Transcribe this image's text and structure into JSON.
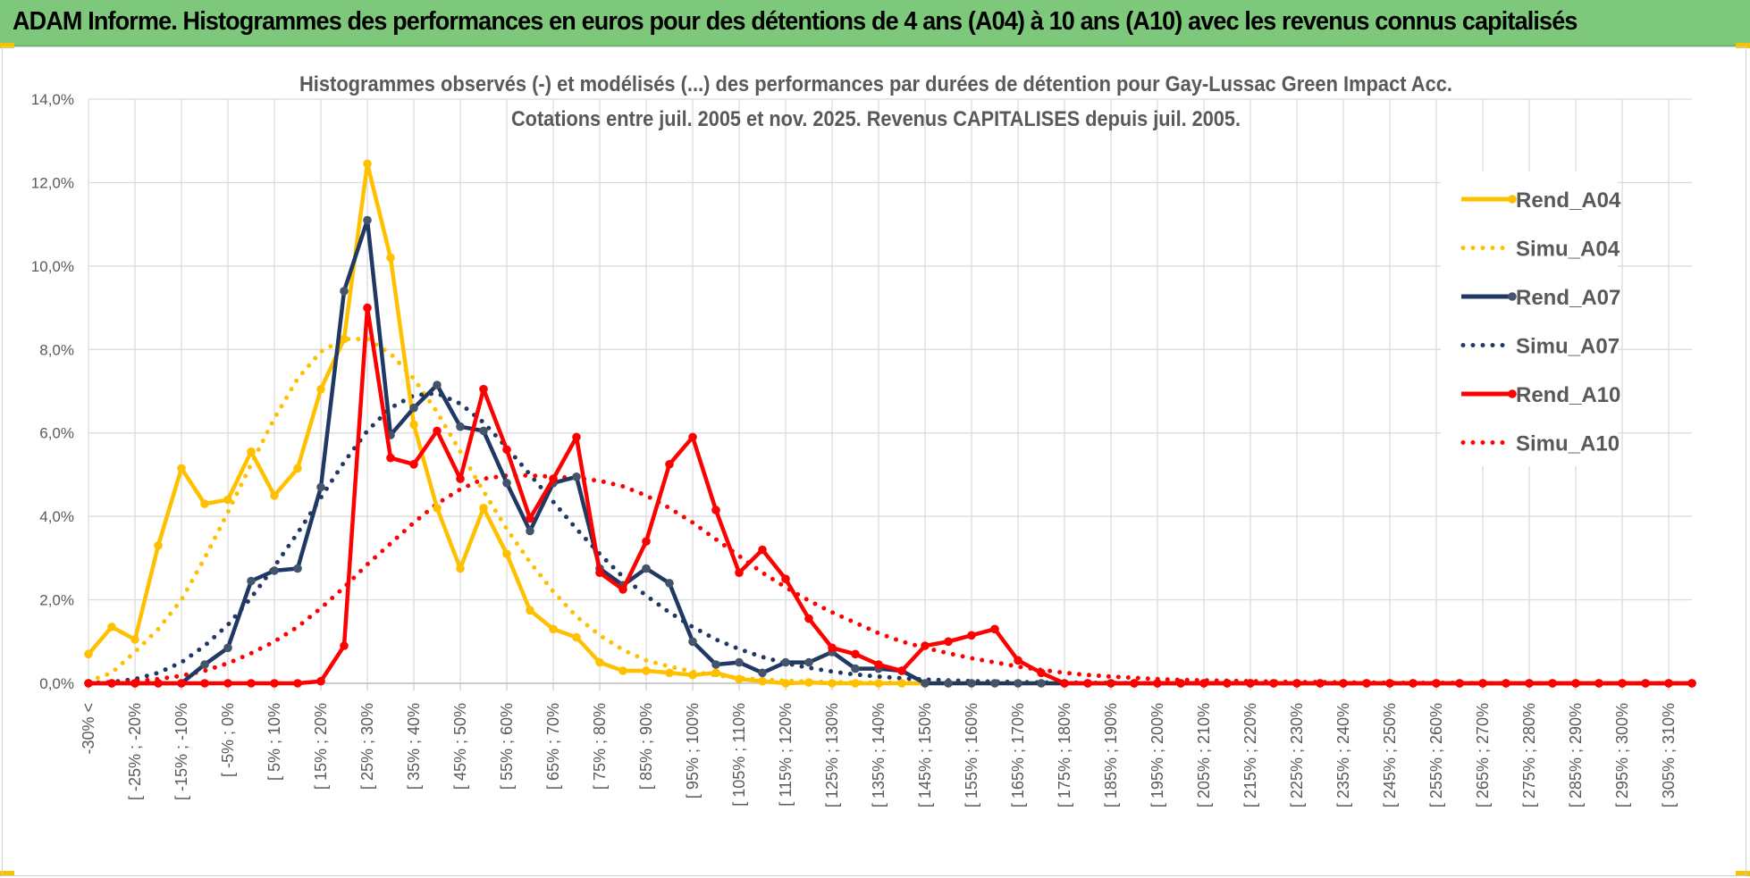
{
  "banner": {
    "title": "ADAM Informe. Histogrammes des performances en euros pour des détentions de 4 ans (A04) à 10 ans (A10) avec les revenus connus capitalisés"
  },
  "colors": {
    "banner_bg": "#7dc87a",
    "A04": "#ffc000",
    "A07": "#1f3864",
    "A10": "#ff0000",
    "grid": "#d9d9d9",
    "text": "#595959"
  },
  "chart_data": {
    "type": "line",
    "title_line1": "Histogrammes observés (-) et modélisés (...)  des performances par durées de détention pour Gay-Lussac Green Impact Acc.",
    "title_line2": "Cotations entre juil. 2005 et nov. 2025. Revenus CAPITALISES depuis juil. 2005.",
    "ylim": [
      0,
      14
    ],
    "yticks": [
      "0,0%",
      "2,0%",
      "4,0%",
      "6,0%",
      "8,0%",
      "10,0%",
      "12,0%",
      "14,0%"
    ],
    "x_label_all": [
      "-30% <",
      "[ -25% ; -20% ",
      "[ -15% ; -10% ",
      "[ -5% ; 0% ",
      "[ 5% ; 10% ",
      "[ 15% ; 20% ",
      "[ 25% ; 30% ",
      "[ 35% ; 40% ",
      "[ 45% ; 50% ",
      "[ 55% ; 60% ",
      "[ 65% ; 70% ",
      "[ 75% ; 80% ",
      "[ 85% ; 90% ",
      "[ 95% ; 100% ",
      "[ 105% ; 110% ",
      "[ 115% ; 120% ",
      "[ 125% ; 130% ",
      "[ 135% ; 140% ",
      "[ 145% ; 150% ",
      "[ 155% ; 160% ",
      "[ 165% ; 170% ",
      "[ 175% ; 180% ",
      "[ 185% ; 190% ",
      "[ 195% ; 200% ",
      "[ 205% ; 210% ",
      "[ 215% ; 220% ",
      "[ 225% ; 230% ",
      "[ 235% ; 240% ",
      "[ 245% ; 250% ",
      "[ 255% ; 260% ",
      "[ 265% ; 270% ",
      "[ 275% ; 280% ",
      "[ 285% ; 290% ",
      "[ 295% ; 300% ",
      "[ 305% ; 310% "
    ],
    "n_bins": 70,
    "series": [
      {
        "name": "Rend_A04",
        "style": "solid",
        "color": "#ffc000",
        "values": [
          0.7,
          1.35,
          1.05,
          3.3,
          5.15,
          4.3,
          4.4,
          5.55,
          4.5,
          5.15,
          7.05,
          8.25,
          12.45,
          10.2,
          6.2,
          4.2,
          2.75,
          4.2,
          3.1,
          1.75,
          1.3,
          1.1,
          0.5,
          0.3,
          0.3,
          0.25,
          0.2,
          0.25,
          0.1,
          0.05,
          0.0,
          0.02,
          0.0,
          0.0,
          0.0,
          0.0,
          0.0,
          0.0,
          0.0,
          0.0,
          0.0,
          0.0,
          0.0,
          0.0,
          0.0,
          0.0,
          0.0,
          0.0,
          0.0,
          0.0,
          0.0,
          0.0,
          0.0,
          0.0,
          0.0,
          0.0,
          0.0,
          0.0,
          0.0,
          0.0,
          0.0,
          0.0,
          0.0,
          0.0,
          0.0,
          0.0,
          0.0,
          0.0,
          0.0,
          0.0
        ]
      },
      {
        "name": "Simu_A04",
        "style": "dotted",
        "color": "#ffc000",
        "values": [
          0.05,
          0.25,
          0.75,
          1.3,
          2.0,
          3.0,
          4.1,
          5.25,
          6.35,
          7.3,
          7.95,
          8.25,
          8.25,
          7.9,
          7.3,
          6.5,
          5.55,
          4.6,
          3.7,
          2.9,
          2.2,
          1.6,
          1.15,
          0.8,
          0.55,
          0.4,
          0.28,
          0.19,
          0.13,
          0.09,
          0.06,
          0.04,
          0.03,
          0.02,
          0.02,
          0.01,
          0.01,
          0.0,
          0.0,
          0.0,
          0.0,
          0.0,
          0.0,
          0.0,
          0.0,
          0.0,
          0.0,
          0.0,
          0.0,
          0.0,
          0.0,
          0.0,
          0.0,
          0.0,
          0.0,
          0.0,
          0.0,
          0.0,
          0.0,
          0.0,
          0.0,
          0.0,
          0.0,
          0.0,
          0.0,
          0.0,
          0.0,
          0.0,
          0.0,
          0.0
        ]
      },
      {
        "name": "Rend_A07",
        "style": "solid",
        "color": "#1f3864",
        "values": [
          0.0,
          0.0,
          0.0,
          0.0,
          0.0,
          0.45,
          0.85,
          2.45,
          2.7,
          2.75,
          4.7,
          9.4,
          11.1,
          5.95,
          6.6,
          7.15,
          6.15,
          6.05,
          4.8,
          3.65,
          4.8,
          4.95,
          2.75,
          2.35,
          2.75,
          2.4,
          1.0,
          0.45,
          0.5,
          0.25,
          0.5,
          0.5,
          0.75,
          0.35,
          0.35,
          0.3,
          0.0,
          0.0,
          0.0,
          0.0,
          0.0,
          0.0,
          0.0,
          0.0,
          0.0,
          0.0,
          0.0,
          0.0,
          0.0,
          0.0,
          0.0,
          0.0,
          0.0,
          0.0,
          0.0,
          0.0,
          0.0,
          0.0,
          0.0,
          0.0,
          0.0,
          0.0,
          0.0,
          0.0,
          0.0,
          0.0,
          0.0,
          0.0,
          0.0,
          0.0
        ]
      },
      {
        "name": "Simu_A07",
        "style": "dotted",
        "color": "#1f3864",
        "values": [
          0.0,
          0.03,
          0.1,
          0.25,
          0.5,
          0.9,
          1.4,
          2.05,
          2.8,
          3.6,
          4.45,
          5.3,
          6.05,
          6.6,
          6.9,
          6.95,
          6.7,
          6.25,
          5.65,
          5.0,
          4.35,
          3.7,
          3.1,
          2.55,
          2.1,
          1.7,
          1.35,
          1.05,
          0.82,
          0.63,
          0.48,
          0.37,
          0.28,
          0.21,
          0.16,
          0.12,
          0.09,
          0.07,
          0.05,
          0.04,
          0.03,
          0.02,
          0.02,
          0.01,
          0.01,
          0.0,
          0.0,
          0.0,
          0.0,
          0.0,
          0.0,
          0.0,
          0.0,
          0.0,
          0.0,
          0.0,
          0.0,
          0.0,
          0.0,
          0.0,
          0.0,
          0.0,
          0.0,
          0.0,
          0.0,
          0.0,
          0.0,
          0.0,
          0.0,
          0.0
        ]
      },
      {
        "name": "Rend_A10",
        "style": "solid",
        "color": "#ff0000",
        "values": [
          0.0,
          0.0,
          0.0,
          0.0,
          0.0,
          0.0,
          0.0,
          0.0,
          0.0,
          0.0,
          0.05,
          0.9,
          9.0,
          5.4,
          5.25,
          6.05,
          4.9,
          7.05,
          5.6,
          3.95,
          4.9,
          5.9,
          2.65,
          2.25,
          3.4,
          5.25,
          5.9,
          4.15,
          2.65,
          3.2,
          2.5,
          1.55,
          0.85,
          0.7,
          0.45,
          0.3,
          0.9,
          1.0,
          1.15,
          1.3,
          0.55,
          0.25,
          0.0,
          0.0,
          0.0,
          0.0,
          0.0,
          0.0,
          0.0,
          0.0,
          0.0,
          0.0,
          0.0,
          0.0,
          0.0,
          0.0,
          0.0,
          0.0,
          0.0,
          0.0,
          0.0,
          0.0,
          0.0,
          0.0,
          0.0,
          0.0,
          0.0,
          0.0,
          0.0,
          0.0
        ]
      },
      {
        "name": "Simu_A10",
        "style": "dotted",
        "color": "#ff0000",
        "values": [
          0.0,
          0.02,
          0.05,
          0.1,
          0.18,
          0.3,
          0.48,
          0.72,
          1.0,
          1.35,
          1.8,
          2.3,
          2.85,
          3.35,
          3.85,
          4.3,
          4.65,
          4.9,
          4.98,
          4.98,
          4.95,
          4.92,
          4.85,
          4.72,
          4.5,
          4.2,
          3.85,
          3.45,
          3.05,
          2.65,
          2.3,
          1.98,
          1.7,
          1.45,
          1.2,
          1.0,
          0.85,
          0.72,
          0.6,
          0.5,
          0.4,
          0.32,
          0.25,
          0.2,
          0.16,
          0.13,
          0.1,
          0.08,
          0.07,
          0.06,
          0.05,
          0.04,
          0.03,
          0.03,
          0.02,
          0.02,
          0.01,
          0.01,
          0.01,
          0.01,
          0.0,
          0.0,
          0.0,
          0.0,
          0.0,
          0.0,
          0.0,
          0.0,
          0.0,
          0.0
        ]
      }
    ],
    "legend": [
      "Rend_A04",
      "Simu_A04",
      "Rend_A07",
      "Simu_A07",
      "Rend_A10",
      "Simu_A10"
    ]
  }
}
